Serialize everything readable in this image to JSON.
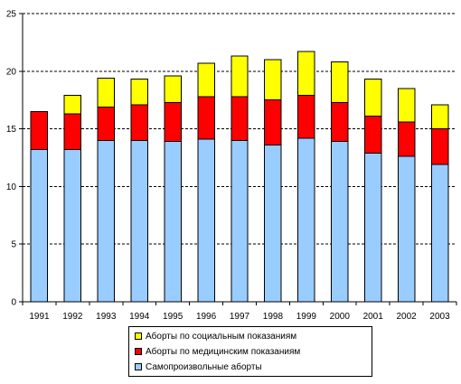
{
  "chart_data": {
    "type": "bar",
    "stacked": true,
    "categories": [
      "1991",
      "1992",
      "1993",
      "1994",
      "1995",
      "1996",
      "1997",
      "1998",
      "1999",
      "2000",
      "2001",
      "2002",
      "2003"
    ],
    "series": [
      {
        "name": "Самопроизвольные аборты",
        "color": "#99ccff",
        "values": [
          13.2,
          13.2,
          14.0,
          14.0,
          13.9,
          14.1,
          14.0,
          13.6,
          14.2,
          13.9,
          12.9,
          12.6,
          11.9
        ]
      },
      {
        "name": "Аборты по медицинским показаниям",
        "color": "#ff0000",
        "values": [
          3.3,
          3.1,
          2.9,
          3.1,
          3.4,
          3.7,
          3.8,
          3.9,
          3.7,
          3.4,
          3.2,
          3.0,
          3.1
        ]
      },
      {
        "name": "Аборты по социальным показаниям",
        "color": "#ffff00",
        "values": [
          0,
          1.6,
          2.5,
          2.2,
          2.3,
          2.9,
          3.5,
          3.5,
          3.8,
          3.5,
          3.2,
          2.9,
          2.1
        ]
      }
    ],
    "ylim": [
      0,
      25
    ],
    "yticks": [
      "0",
      "5",
      "10",
      "15",
      "20",
      "25"
    ],
    "grid": true,
    "legend_position": "bottom"
  },
  "legend": {
    "items": [
      {
        "label": "Аборты по социальным показаниям",
        "color": "#ffff00"
      },
      {
        "label": "Аборты по медицинским показаниям",
        "color": "#ff0000"
      },
      {
        "label": "Самопроизвольные аборты",
        "color": "#99ccff"
      }
    ]
  }
}
